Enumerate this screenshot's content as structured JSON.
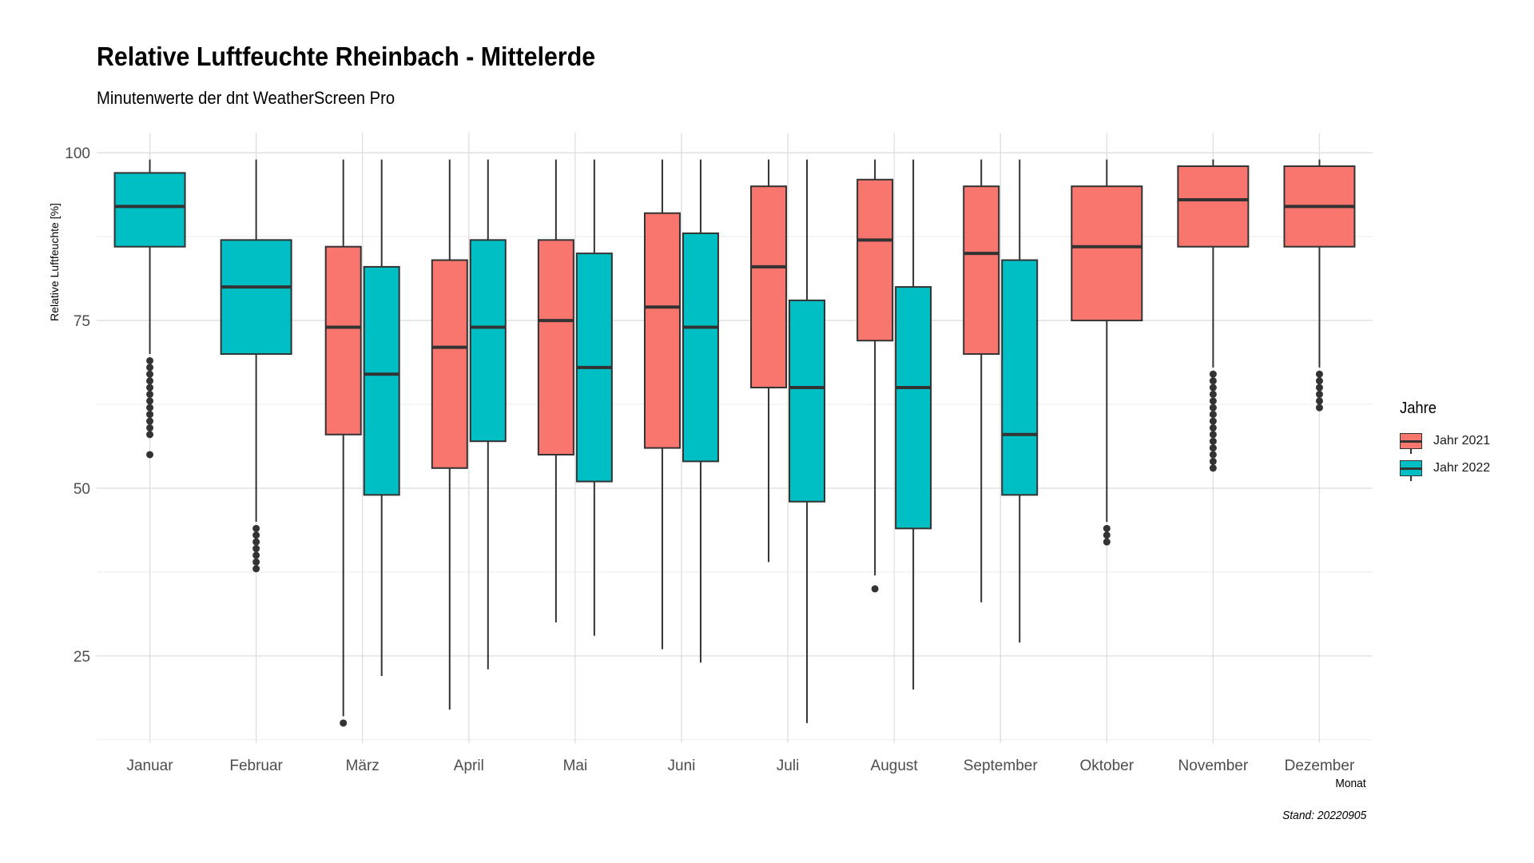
{
  "chart_data": {
    "type": "boxplot",
    "title": "Relative Luftfeuchte Rheinbach - Mittelerde",
    "subtitle": "Minutenwerte der dnt WeatherScreen Pro",
    "xlabel": "Monat",
    "ylabel": "Relative Luftfeuchte [%]",
    "caption": "Stand: 20220905",
    "ylim": [
      12,
      103
    ],
    "yticks": [
      25,
      50,
      75,
      100
    ],
    "grid": true,
    "legend": {
      "title": "Jahre",
      "placement": "right"
    },
    "categories": [
      "Januar",
      "Februar",
      "März",
      "April",
      "Mai",
      "Juni",
      "Juli",
      "August",
      "September",
      "Oktober",
      "November",
      "Dezember"
    ],
    "series": [
      {
        "name": "Jahr 2021",
        "color": "#F8766D",
        "boxes": [
          null,
          null,
          {
            "whisker_low": 16,
            "q1": 58,
            "median": 74,
            "q3": 86,
            "whisker_high": 99,
            "outliers": [
              15
            ]
          },
          {
            "whisker_low": 17,
            "q1": 53,
            "median": 71,
            "q3": 84,
            "whisker_high": 99,
            "outliers": []
          },
          {
            "whisker_low": 30,
            "q1": 55,
            "median": 75,
            "q3": 87,
            "whisker_high": 99,
            "outliers": []
          },
          {
            "whisker_low": 26,
            "q1": 56,
            "median": 77,
            "q3": 91,
            "whisker_high": 99,
            "outliers": []
          },
          {
            "whisker_low": 39,
            "q1": 65,
            "median": 83,
            "q3": 95,
            "whisker_high": 99,
            "outliers": []
          },
          {
            "whisker_low": 37,
            "q1": 72,
            "median": 87,
            "q3": 96,
            "whisker_high": 99,
            "outliers": [
              35
            ]
          },
          {
            "whisker_low": 33,
            "q1": 70,
            "median": 85,
            "q3": 95,
            "whisker_high": 99,
            "outliers": []
          },
          {
            "whisker_low": 45,
            "q1": 75,
            "median": 86,
            "q3": 95,
            "whisker_high": 99,
            "outliers": [
              44,
              43,
              42
            ]
          },
          {
            "whisker_low": 68,
            "q1": 86,
            "median": 93,
            "q3": 98,
            "whisker_high": 99,
            "outliers": [
              67,
              66,
              65,
              64,
              63,
              62,
              61,
              60,
              59,
              58,
              57,
              56,
              55,
              54,
              53
            ]
          },
          {
            "whisker_low": 68,
            "q1": 86,
            "median": 92,
            "q3": 98,
            "whisker_high": 99,
            "outliers": [
              67,
              66,
              65,
              64,
              63,
              62
            ]
          }
        ]
      },
      {
        "name": "Jahr 2022",
        "color": "#00BFC4",
        "boxes": [
          {
            "whisker_low": 70,
            "q1": 86,
            "median": 92,
            "q3": 97,
            "whisker_high": 99,
            "outliers": [
              69,
              68,
              67,
              66,
              65,
              64,
              63,
              62,
              61,
              60,
              59,
              58,
              55
            ]
          },
          {
            "whisker_low": 45,
            "q1": 70,
            "median": 80,
            "q3": 87,
            "whisker_high": 99,
            "outliers": [
              44,
              43,
              42,
              41,
              40,
              39,
              38
            ]
          },
          {
            "whisker_low": 22,
            "q1": 49,
            "median": 67,
            "q3": 83,
            "whisker_high": 99,
            "outliers": []
          },
          {
            "whisker_low": 23,
            "q1": 57,
            "median": 74,
            "q3": 87,
            "whisker_high": 99,
            "outliers": []
          },
          {
            "whisker_low": 28,
            "q1": 51,
            "median": 68,
            "q3": 85,
            "whisker_high": 99,
            "outliers": []
          },
          {
            "whisker_low": 24,
            "q1": 54,
            "median": 74,
            "q3": 88,
            "whisker_high": 99,
            "outliers": []
          },
          {
            "whisker_low": 15,
            "q1": 48,
            "median": 65,
            "q3": 78,
            "whisker_high": 99,
            "outliers": []
          },
          {
            "whisker_low": 20,
            "q1": 44,
            "median": 65,
            "q3": 80,
            "whisker_high": 99,
            "outliers": []
          },
          {
            "whisker_low": 27,
            "q1": 49,
            "median": 58,
            "q3": 84,
            "whisker_high": 99,
            "outliers": []
          },
          null,
          null,
          null
        ]
      }
    ]
  }
}
